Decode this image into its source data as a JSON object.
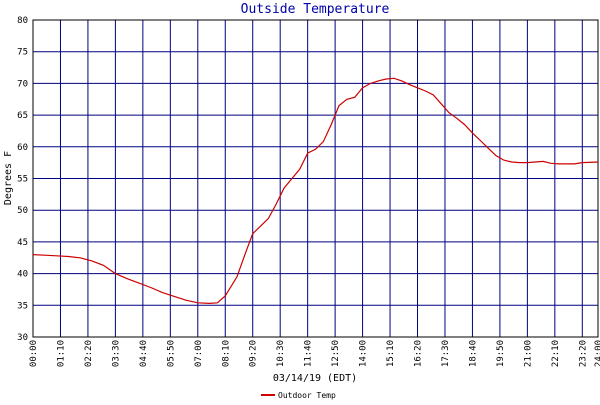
{
  "chart_data": {
    "type": "line",
    "title": "Outside Temperature",
    "xlabel": "03/14/19 (EDT)",
    "ylabel": "Degrees F",
    "ylim": [
      30,
      80
    ],
    "xlim": [
      "00:00",
      "24:00"
    ],
    "y_ticks": [
      "80",
      "75",
      "70",
      "65",
      "60",
      "55",
      "50",
      "45",
      "40",
      "35",
      "30"
    ],
    "x_ticks": [
      "00:00",
      "01:10",
      "02:20",
      "03:30",
      "04:40",
      "05:50",
      "07:00",
      "08:10",
      "09:20",
      "10:30",
      "11:40",
      "12:50",
      "14:00",
      "15:10",
      "16:20",
      "17:30",
      "18:40",
      "19:50",
      "21:00",
      "22:10",
      "23:20",
      "24:00"
    ],
    "grid": true,
    "legend_position": "bottom",
    "series": [
      {
        "name": "Outdoor Temp",
        "color": "#cc0000",
        "points": [
          [
            "00:00",
            43.0
          ],
          [
            "00:30",
            42.9
          ],
          [
            "01:00",
            42.8
          ],
          [
            "01:30",
            42.7
          ],
          [
            "02:00",
            42.5
          ],
          [
            "02:30",
            42.0
          ],
          [
            "03:00",
            41.3
          ],
          [
            "03:30",
            40.0
          ],
          [
            "04:00",
            39.2
          ],
          [
            "04:30",
            38.5
          ],
          [
            "05:00",
            37.8
          ],
          [
            "05:30",
            37.0
          ],
          [
            "06:00",
            36.4
          ],
          [
            "06:30",
            35.8
          ],
          [
            "07:00",
            35.4
          ],
          [
            "07:30",
            35.3
          ],
          [
            "07:50",
            35.4
          ],
          [
            "08:10",
            36.5
          ],
          [
            "08:40",
            39.5
          ],
          [
            "09:00",
            43.0
          ],
          [
            "09:20",
            46.3
          ],
          [
            "09:40",
            47.5
          ],
          [
            "10:00",
            48.7
          ],
          [
            "10:20",
            51.0
          ],
          [
            "10:40",
            53.5
          ],
          [
            "11:00",
            55.0
          ],
          [
            "11:20",
            56.5
          ],
          [
            "11:40",
            59.0
          ],
          [
            "12:00",
            59.6
          ],
          [
            "12:20",
            60.8
          ],
          [
            "12:40",
            63.5
          ],
          [
            "13:00",
            66.5
          ],
          [
            "13:20",
            67.5
          ],
          [
            "13:40",
            67.8
          ],
          [
            "14:00",
            69.3
          ],
          [
            "14:20",
            70.0
          ],
          [
            "14:40",
            70.4
          ],
          [
            "15:00",
            70.7
          ],
          [
            "15:20",
            70.8
          ],
          [
            "15:40",
            70.4
          ],
          [
            "16:00",
            69.8
          ],
          [
            "16:20",
            69.3
          ],
          [
            "16:40",
            68.8
          ],
          [
            "17:00",
            68.2
          ],
          [
            "17:20",
            66.8
          ],
          [
            "17:40",
            65.4
          ],
          [
            "18:00",
            64.5
          ],
          [
            "18:20",
            63.5
          ],
          [
            "18:40",
            62.2
          ],
          [
            "19:00",
            61.0
          ],
          [
            "19:20",
            59.8
          ],
          [
            "19:40",
            58.6
          ],
          [
            "20:00",
            57.9
          ],
          [
            "20:20",
            57.6
          ],
          [
            "20:40",
            57.5
          ],
          [
            "21:00",
            57.5
          ],
          [
            "21:20",
            57.6
          ],
          [
            "21:40",
            57.7
          ],
          [
            "22:00",
            57.4
          ],
          [
            "22:20",
            57.3
          ],
          [
            "22:40",
            57.3
          ],
          [
            "23:00",
            57.3
          ],
          [
            "23:20",
            57.5
          ],
          [
            "24:00",
            57.6
          ]
        ]
      }
    ]
  }
}
